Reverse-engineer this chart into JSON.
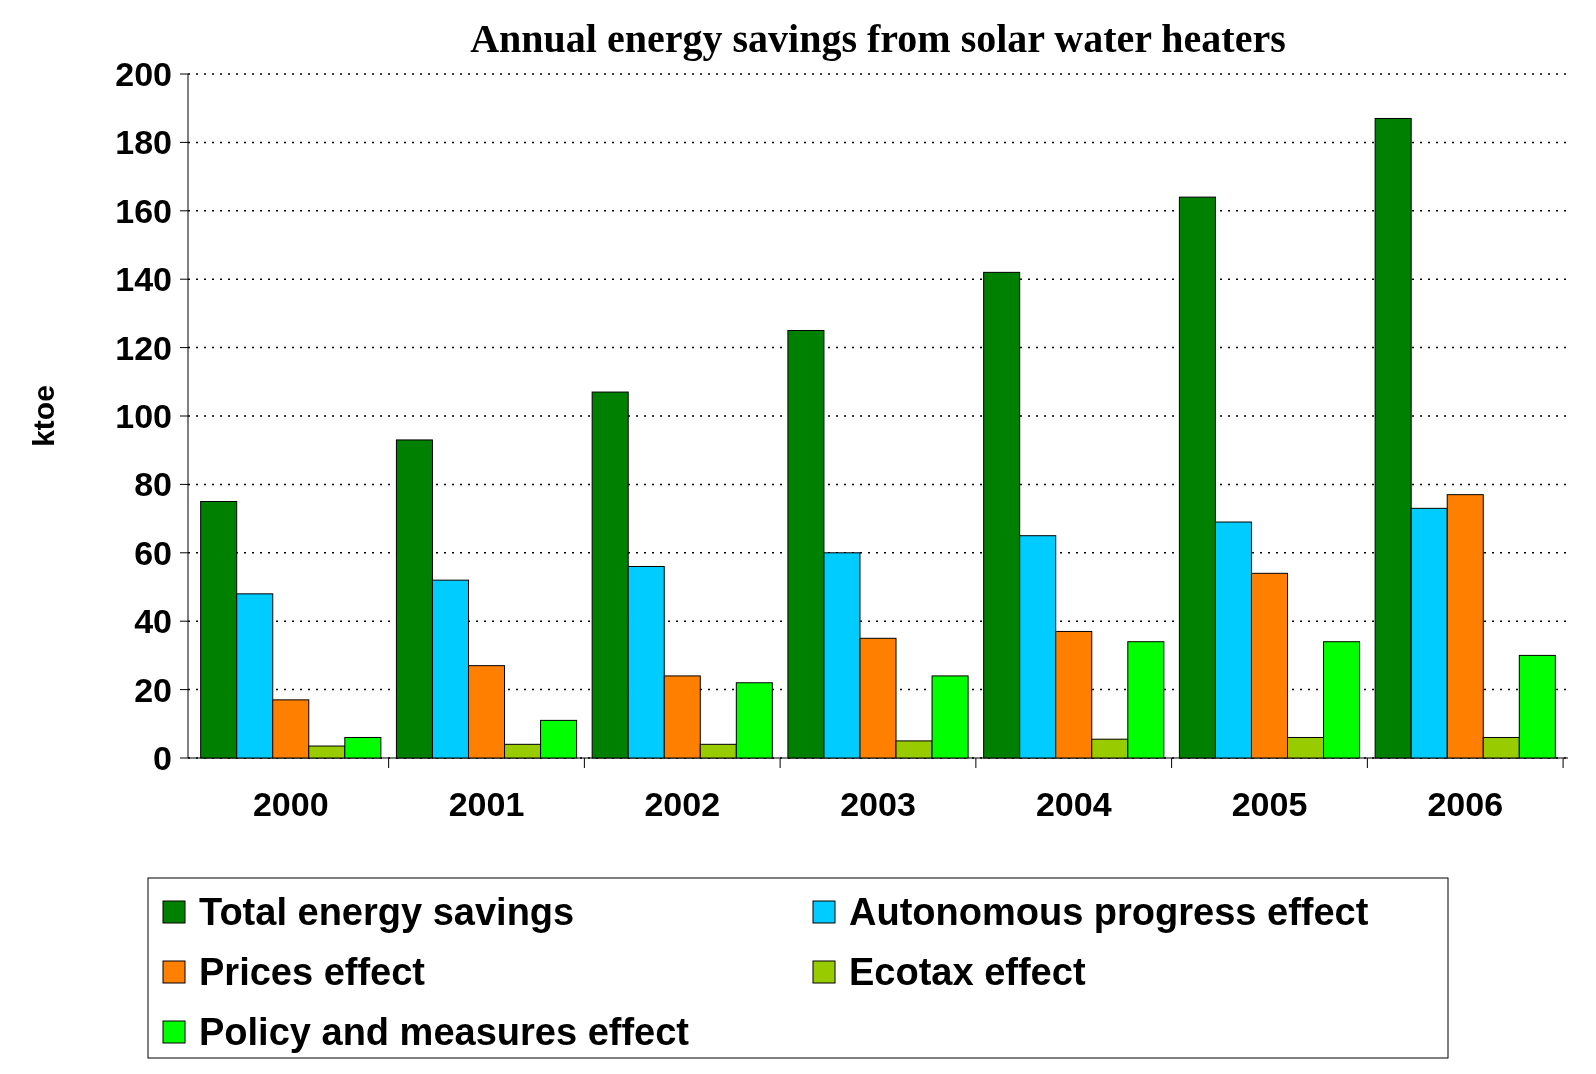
{
  "chart_data": {
    "type": "bar",
    "title": "Annual energy savings from solar water heaters",
    "ylabel": "ktoe",
    "categories": [
      "2000",
      "2001",
      "2002",
      "2003",
      "2004",
      "2005",
      "2006"
    ],
    "series": [
      {
        "name": "Total energy savings",
        "color": "#008000",
        "values": [
          75,
          93,
          107,
          125,
          142,
          164,
          187
        ]
      },
      {
        "name": "Autonomous progress effect",
        "color": "#00ccff",
        "values": [
          48,
          52,
          56,
          60,
          65,
          69,
          73
        ]
      },
      {
        "name": "Prices effect",
        "color": "#ff8000",
        "values": [
          17,
          27,
          24,
          35,
          37,
          54,
          77
        ]
      },
      {
        "name": "Ecotax effect",
        "color": "#99cc00",
        "values": [
          3.5,
          4,
          4,
          5,
          5.5,
          6,
          6
        ]
      },
      {
        "name": "Policy and measures effect",
        "color": "#00ff00",
        "values": [
          6,
          11,
          22,
          24,
          34,
          34,
          30
        ]
      }
    ],
    "ylim": [
      0,
      200
    ],
    "yticks": [
      0,
      20,
      40,
      60,
      80,
      100,
      120,
      140,
      160,
      180,
      200
    ],
    "grid": "y",
    "legend": "bottom"
  }
}
